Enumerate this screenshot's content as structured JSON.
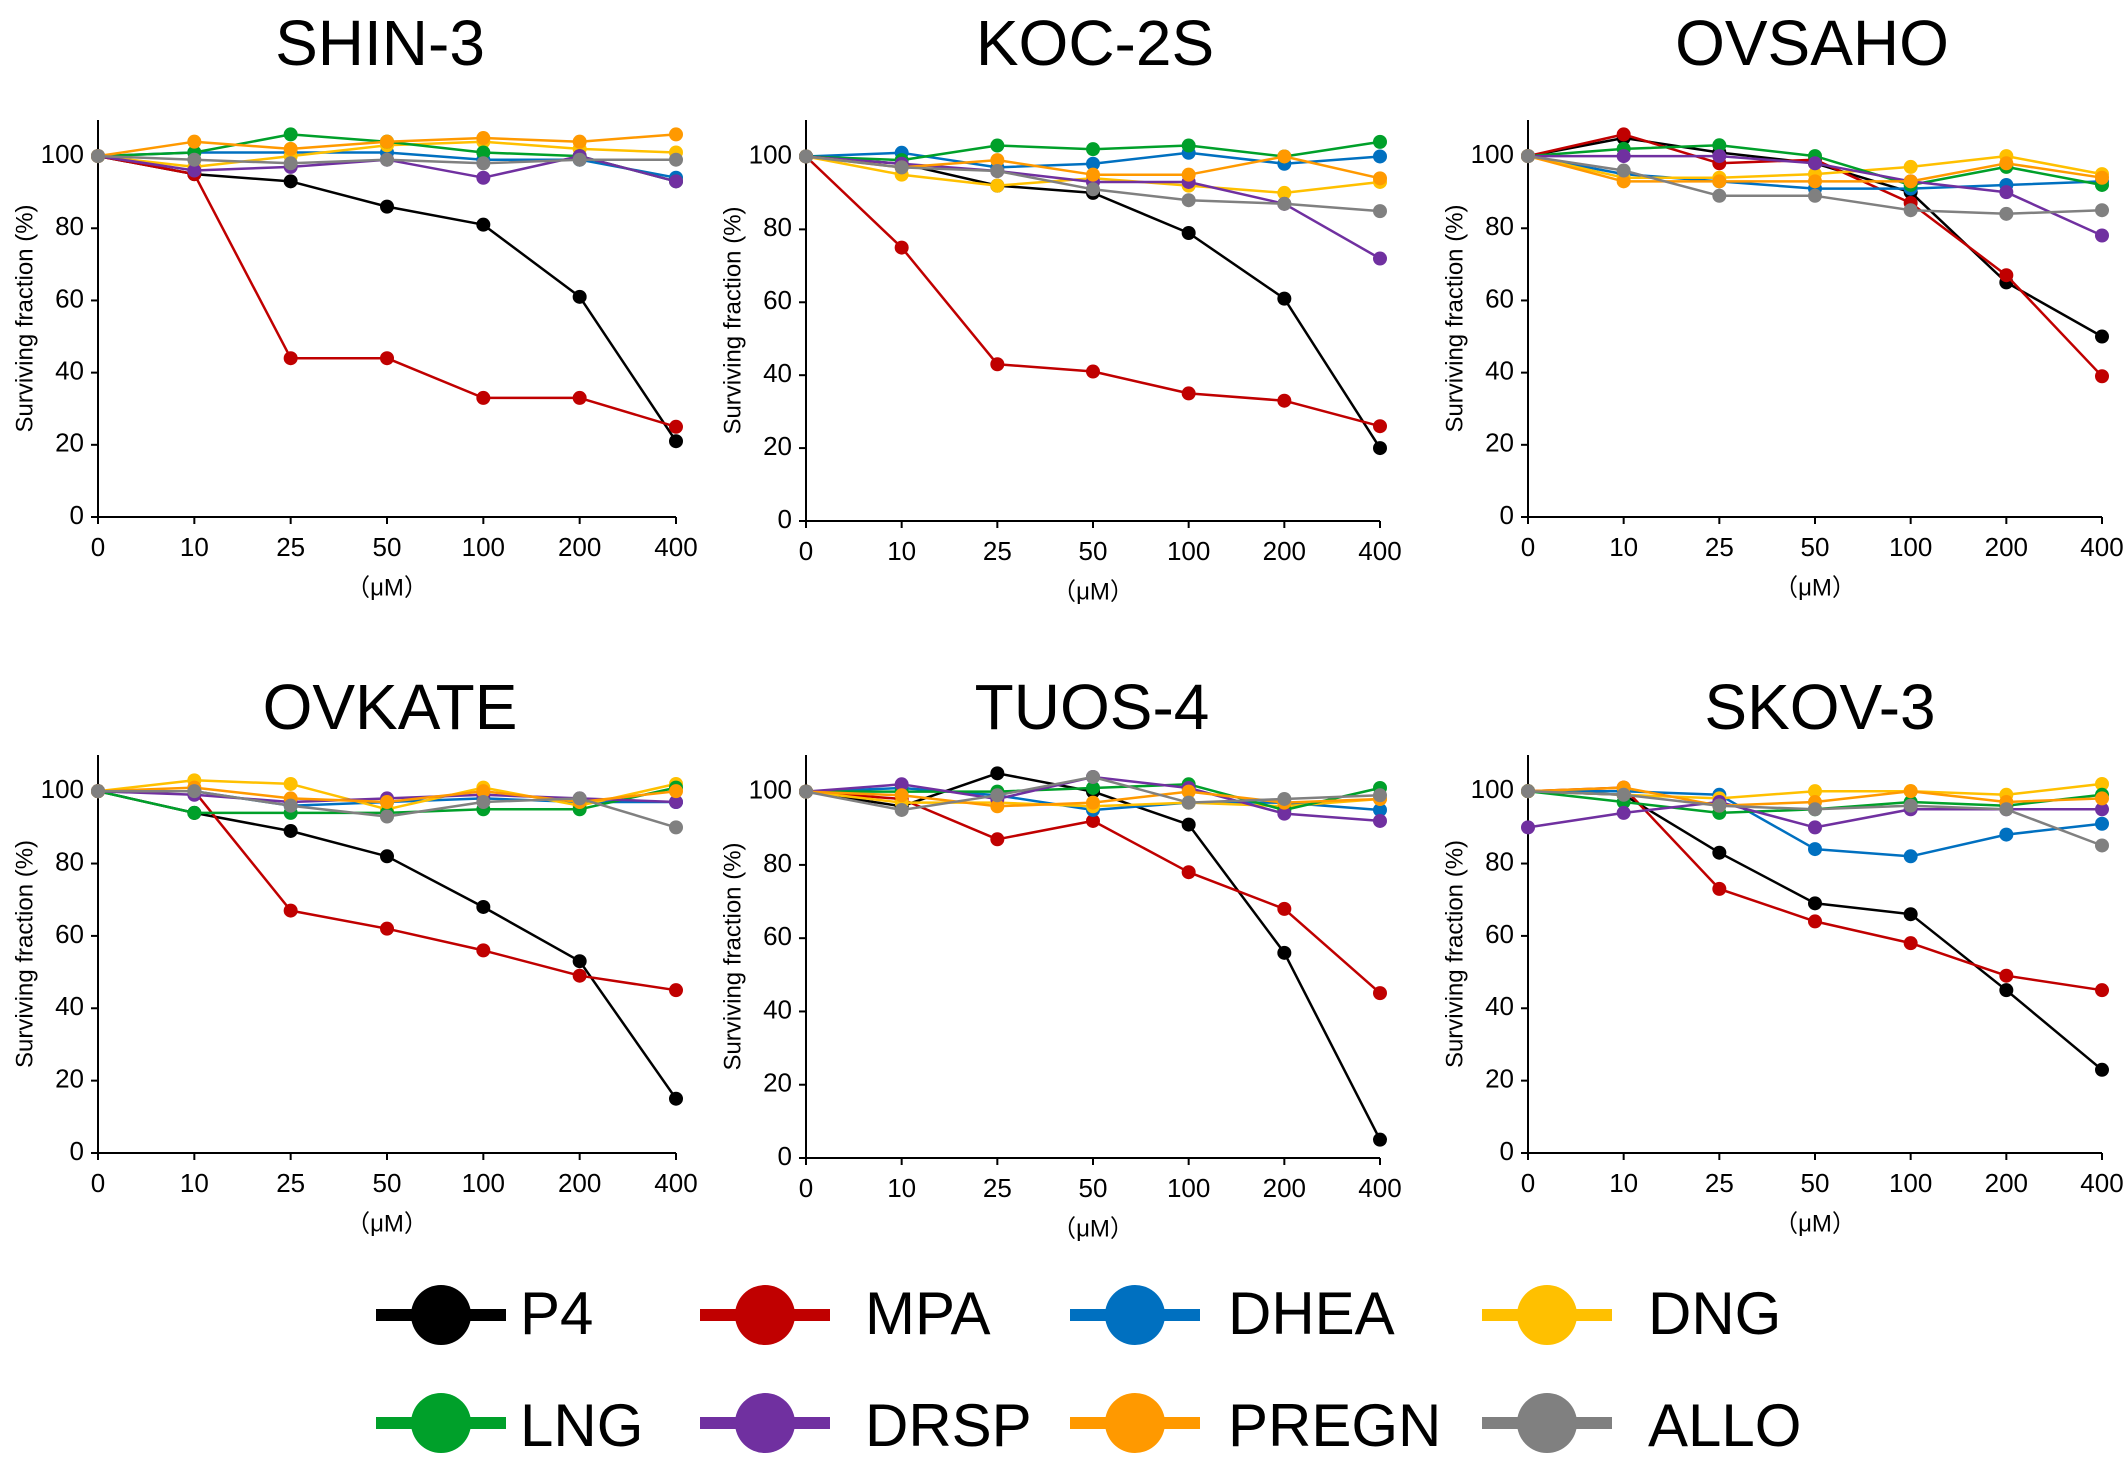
{
  "chart_data": [
    {
      "type": "line",
      "title": "SHIN-3",
      "categories": [
        "0",
        "10",
        "25",
        "50",
        "100",
        "200",
        "400"
      ],
      "xlabel": "（μM）",
      "ylabel": "Surviving fraction (%)",
      "ylim": [
        0,
        110
      ],
      "yticks": [
        0,
        20,
        40,
        60,
        80,
        100
      ],
      "grid": false,
      "series": [
        {
          "name": "P4",
          "values": [
            100,
            95,
            93,
            86,
            81,
            61,
            21
          ]
        },
        {
          "name": "MPA",
          "values": [
            100,
            95,
            44,
            44,
            33,
            33,
            25
          ]
        },
        {
          "name": "DHEA",
          "values": [
            100,
            101,
            101,
            101,
            99,
            99,
            94
          ]
        },
        {
          "name": "DNG",
          "values": [
            100,
            97,
            100,
            103,
            104,
            102,
            101
          ]
        },
        {
          "name": "LNG",
          "values": [
            100,
            101,
            106,
            104,
            101,
            100,
            93
          ]
        },
        {
          "name": "DRSP",
          "values": [
            100,
            96,
            97,
            99,
            94,
            100,
            93
          ]
        },
        {
          "name": "PREGN",
          "values": [
            100,
            104,
            102,
            104,
            105,
            104,
            106
          ]
        },
        {
          "name": "ALLO",
          "values": [
            100,
            99,
            98,
            99,
            98,
            99,
            99
          ]
        }
      ]
    },
    {
      "type": "line",
      "title": "KOC-2S",
      "categories": [
        "0",
        "10",
        "25",
        "50",
        "100",
        "200",
        "400"
      ],
      "xlabel": "（μM）",
      "ylabel": "Surviving fraction (%)",
      "ylim": [
        0,
        110
      ],
      "yticks": [
        0,
        20,
        40,
        60,
        80,
        100
      ],
      "grid": false,
      "series": [
        {
          "name": "P4",
          "values": [
            100,
            98,
            92,
            90,
            79,
            61,
            20
          ]
        },
        {
          "name": "MPA",
          "values": [
            100,
            75,
            43,
            41,
            35,
            33,
            26
          ]
        },
        {
          "name": "DHEA",
          "values": [
            100,
            101,
            97,
            98,
            101,
            98,
            100
          ]
        },
        {
          "name": "DNG",
          "values": [
            100,
            95,
            92,
            94,
            92,
            90,
            93
          ]
        },
        {
          "name": "LNG",
          "values": [
            100,
            99,
            103,
            102,
            103,
            100,
            104
          ]
        },
        {
          "name": "DRSP",
          "values": [
            100,
            98,
            96,
            93,
            93,
            87,
            72
          ]
        },
        {
          "name": "PREGN",
          "values": [
            100,
            97,
            99,
            95,
            95,
            100,
            94
          ]
        },
        {
          "name": "ALLO",
          "values": [
            100,
            97,
            96,
            91,
            88,
            87,
            85
          ]
        }
      ]
    },
    {
      "type": "line",
      "title": "OVSAHO",
      "categories": [
        "0",
        "10",
        "25",
        "50",
        "100",
        "200",
        "400"
      ],
      "xlabel": "（μM）",
      "ylabel": "Surviving fraction (%)",
      "ylim": [
        0,
        110
      ],
      "yticks": [
        0,
        20,
        40,
        60,
        80,
        100
      ],
      "grid": false,
      "series": [
        {
          "name": "P4",
          "values": [
            100,
            105,
            101,
            98,
            90,
            65,
            50
          ]
        },
        {
          "name": "MPA",
          "values": [
            100,
            106,
            98,
            99,
            87,
            67,
            39
          ]
        },
        {
          "name": "DHEA",
          "values": [
            100,
            95,
            93,
            91,
            91,
            92,
            93
          ]
        },
        {
          "name": "DNG",
          "values": [
            100,
            94,
            94,
            95,
            97,
            100,
            95
          ]
        },
        {
          "name": "LNG",
          "values": [
            100,
            102,
            103,
            100,
            92,
            97,
            92
          ]
        },
        {
          "name": "DRSP",
          "values": [
            100,
            100,
            100,
            98,
            93,
            90,
            78
          ]
        },
        {
          "name": "PREGN",
          "values": [
            100,
            93,
            93,
            93,
            93,
            98,
            94
          ]
        },
        {
          "name": "ALLO",
          "values": [
            100,
            96,
            89,
            89,
            85,
            84,
            85
          ]
        }
      ]
    },
    {
      "type": "line",
      "title": "OVKATE",
      "categories": [
        "0",
        "10",
        "25",
        "50",
        "100",
        "200",
        "400"
      ],
      "xlabel": "（μM）",
      "ylabel": "Surviving fraction (%)",
      "ylim": [
        0,
        110
      ],
      "yticks": [
        0,
        20,
        40,
        60,
        80,
        100
      ],
      "grid": false,
      "series": [
        {
          "name": "P4",
          "values": [
            100,
            94,
            89,
            82,
            68,
            53,
            15
          ]
        },
        {
          "name": "MPA",
          "values": [
            100,
            100,
            67,
            62,
            56,
            49,
            45
          ]
        },
        {
          "name": "DHEA",
          "values": [
            100,
            100,
            96,
            97,
            98,
            97,
            97
          ]
        },
        {
          "name": "DNG",
          "values": [
            100,
            103,
            102,
            95,
            101,
            96,
            102
          ]
        },
        {
          "name": "LNG",
          "values": [
            100,
            94,
            94,
            94,
            95,
            95,
            101
          ]
        },
        {
          "name": "DRSP",
          "values": [
            100,
            99,
            97,
            98,
            99,
            98,
            97
          ]
        },
        {
          "name": "PREGN",
          "values": [
            100,
            101,
            98,
            97,
            100,
            97,
            100
          ]
        },
        {
          "name": "ALLO",
          "values": [
            100,
            100,
            96,
            93,
            97,
            98,
            90
          ]
        }
      ]
    },
    {
      "type": "line",
      "title": "TUOS-4",
      "categories": [
        "0",
        "10",
        "25",
        "50",
        "100",
        "200",
        "400"
      ],
      "xlabel": "（μM）",
      "ylabel": "Surviving fraction (%)",
      "ylim": [
        0,
        110
      ],
      "yticks": [
        0,
        20,
        40,
        60,
        80,
        100
      ],
      "grid": false,
      "series": [
        {
          "name": "P4",
          "values": [
            100,
            96,
            105,
            100,
            91,
            56,
            5
          ]
        },
        {
          "name": "MPA",
          "values": [
            100,
            98,
            87,
            92,
            78,
            68,
            45
          ]
        },
        {
          "name": "DHEA",
          "values": [
            100,
            101,
            99,
            95,
            97,
            97,
            95
          ]
        },
        {
          "name": "DNG",
          "values": [
            100,
            97,
            97,
            96,
            97,
            96,
            98
          ]
        },
        {
          "name": "LNG",
          "values": [
            100,
            100,
            100,
            101,
            102,
            95,
            101
          ]
        },
        {
          "name": "DRSP",
          "values": [
            100,
            102,
            98,
            104,
            101,
            94,
            92
          ]
        },
        {
          "name": "PREGN",
          "values": [
            100,
            99,
            96,
            97,
            100,
            97,
            98
          ]
        },
        {
          "name": "ALLO",
          "values": [
            100,
            95,
            99,
            104,
            97,
            98,
            99
          ]
        }
      ]
    },
    {
      "type": "line",
      "title": "SKOV-3",
      "categories": [
        "0",
        "10",
        "25",
        "50",
        "100",
        "200",
        "400"
      ],
      "xlabel": "（μM）",
      "ylabel": "Surviving fraction (%)",
      "ylim": [
        0,
        110
      ],
      "yticks": [
        0,
        20,
        40,
        60,
        80,
        100
      ],
      "grid": false,
      "series": [
        {
          "name": "P4",
          "values": [
            100,
            99,
            83,
            69,
            66,
            45,
            23
          ]
        },
        {
          "name": "MPA",
          "values": [
            100,
            101,
            73,
            64,
            58,
            49,
            45
          ]
        },
        {
          "name": "DHEA",
          "values": [
            100,
            100,
            99,
            84,
            82,
            88,
            91
          ]
        },
        {
          "name": "DNG",
          "values": [
            100,
            99,
            98,
            100,
            100,
            99,
            102
          ]
        },
        {
          "name": "LNG",
          "values": [
            100,
            97,
            94,
            95,
            97,
            96,
            99
          ]
        },
        {
          "name": "DRSP",
          "values": [
            90,
            94,
            97,
            90,
            95,
            95,
            95
          ]
        },
        {
          "name": "PREGN",
          "values": [
            100,
            101,
            96,
            97,
            100,
            97,
            98
          ]
        },
        {
          "name": "ALLO",
          "values": [
            100,
            99,
            96,
            95,
            96,
            95,
            85
          ]
        }
      ]
    }
  ],
  "legend": {
    "placement": "bottom",
    "items": [
      {
        "label": "P4",
        "color": "#000000"
      },
      {
        "label": "MPA",
        "color": "#C00000"
      },
      {
        "label": "DHEA",
        "color": "#0070C0"
      },
      {
        "label": "DNG",
        "color": "#FFC000"
      },
      {
        "label": "LNG",
        "color": "#00A02A"
      },
      {
        "label": "DRSP",
        "color": "#7030A0"
      },
      {
        "label": "PREGN",
        "color": "#FF9900"
      },
      {
        "label": "ALLO",
        "color": "#808080"
      }
    ]
  }
}
